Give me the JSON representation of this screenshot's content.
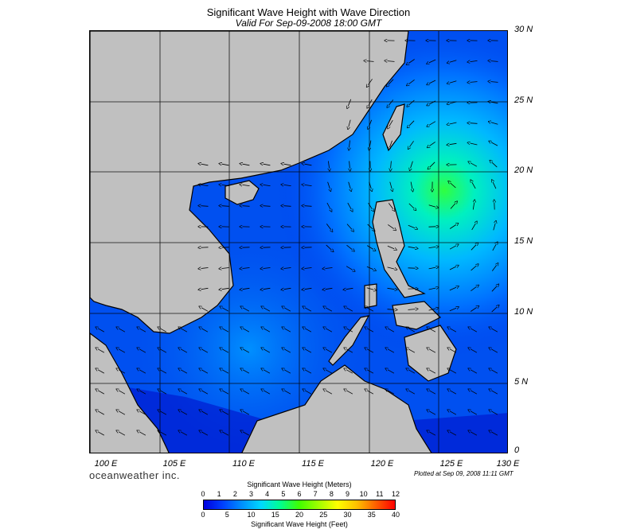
{
  "header": {
    "title": "Significant Wave Height with Wave Direction",
    "subtitle": "Valid For Sep-09-2008 18:00 GMT"
  },
  "map": {
    "region": "South China Sea / Philippines",
    "lon_range": [
      100,
      130
    ],
    "lat_range": [
      0,
      30
    ],
    "lat_labels": [
      "30 N",
      "25 N",
      "20 N",
      "15 N",
      "10 N",
      "5 N",
      "0"
    ],
    "lon_labels": [
      "100 E",
      "105 E",
      "110 E",
      "115 E",
      "120 E",
      "125 E",
      "130 E"
    ],
    "land_color": "#c0c0c0",
    "storm_center": {
      "lon": 125,
      "lat": 19.5,
      "max_height_m": 5
    }
  },
  "footer": {
    "brand": "oceanweather inc.",
    "plotted": "Plotted at Sep 09, 2008 11:11 GMT"
  },
  "colorbar": {
    "title_meters": "Significant Wave Height (Meters)",
    "title_feet": "Significant Wave Height (Feet)",
    "meter_ticks": [
      "0",
      "1",
      "2",
      "3",
      "4",
      "5",
      "6",
      "7",
      "8",
      "9",
      "10",
      "11",
      "12"
    ],
    "feet_ticks": [
      "0",
      "5",
      "10",
      "15",
      "20",
      "25",
      "30",
      "35",
      "40"
    ],
    "colors": [
      "#0000dd",
      "#0040ff",
      "#0090ff",
      "#00d8ff",
      "#00ff90",
      "#40ff00",
      "#a0ff00",
      "#ffff00",
      "#ffc000",
      "#ff6000",
      "#ff0000"
    ]
  }
}
